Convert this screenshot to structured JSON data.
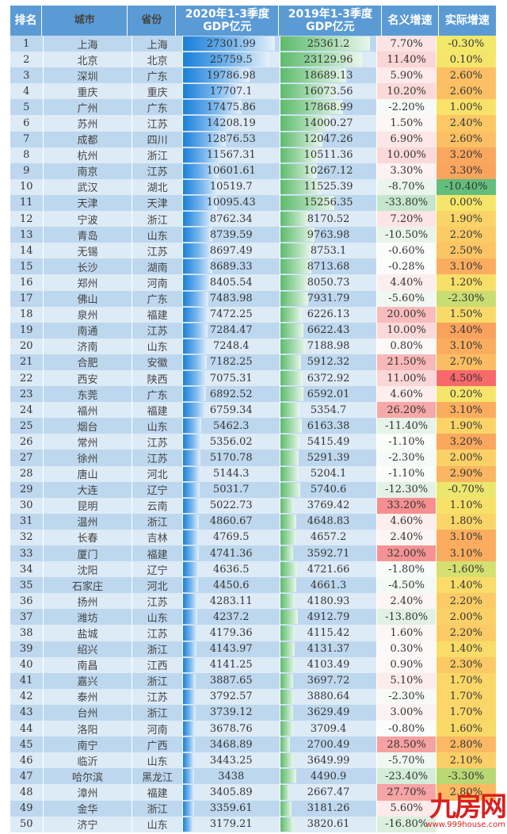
{
  "table": {
    "headers": {
      "rank": "排名",
      "city": "城市",
      "province": "省份",
      "gdp2020": "2020年1-3季度 GDP亿元",
      "gdp2019": "2019年1-3季度 GDP亿元",
      "nominal_growth": "名义增速",
      "real_growth": "实际增速"
    },
    "rows": [
      {
        "rank": "1",
        "city": "上海",
        "province": "上海",
        "gdp2020": "27301.99",
        "gdp2019": "25361.2",
        "nominal": "7.70%",
        "real": "-0.30%",
        "nominal_color": "#fde4e4",
        "real_color": "#f2e86a"
      },
      {
        "rank": "2",
        "city": "北京",
        "province": "北京",
        "gdp2020": "25759.5",
        "gdp2019": "23129.96",
        "nominal": "11.40%",
        "real": "0.10%",
        "nominal_color": "#fbd6d6",
        "real_color": "#f5e66b"
      },
      {
        "rank": "3",
        "city": "深圳",
        "province": "广东",
        "gdp2020": "19786.98",
        "gdp2019": "18689.13",
        "nominal": "5.90%",
        "real": "2.60%",
        "nominal_color": "#fdeaea",
        "real_color": "#fbc063"
      },
      {
        "rank": "4",
        "city": "重庆",
        "province": "重庆",
        "gdp2020": "17707.1",
        "gdp2019": "16073.56",
        "nominal": "10.20%",
        "real": "2.60%",
        "nominal_color": "#fbd9d9",
        "real_color": "#fbc063"
      },
      {
        "rank": "5",
        "city": "广州",
        "province": "广东",
        "gdp2020": "17475.86",
        "gdp2019": "17868.99",
        "nominal": "-2.20%",
        "real": "1.00%",
        "nominal_color": "#f7fbf8",
        "real_color": "#f8e26a"
      },
      {
        "rank": "6",
        "city": "苏州",
        "province": "江苏",
        "gdp2020": "14208.19",
        "gdp2019": "14000.27",
        "nominal": "1.50%",
        "real": "2.40%",
        "nominal_color": "#fdf6f6",
        "real_color": "#fbc865"
      },
      {
        "rank": "7",
        "city": "成都",
        "province": "四川",
        "gdp2020": "12876.53",
        "gdp2019": "12047.26",
        "nominal": "6.90%",
        "real": "2.60%",
        "nominal_color": "#fde6e6",
        "real_color": "#fbc063"
      },
      {
        "rank": "8",
        "city": "杭州",
        "province": "浙江",
        "gdp2020": "11567.31",
        "gdp2019": "10511.36",
        "nominal": "10.00%",
        "real": "3.20%",
        "nominal_color": "#fbd9d9",
        "real_color": "#f9a85e"
      },
      {
        "rank": "9",
        "city": "南京",
        "province": "江苏",
        "gdp2020": "10601.61",
        "gdp2019": "10267.12",
        "nominal": "3.30%",
        "real": "3.30%",
        "nominal_color": "#fdf1f1",
        "real_color": "#f9a55e"
      },
      {
        "rank": "10",
        "city": "武汉",
        "province": "湖北",
        "gdp2020": "10519.7",
        "gdp2019": "11525.39",
        "nominal": "-8.70%",
        "real": "-10.40%",
        "nominal_color": "#eaf5ec",
        "real_color": "#63be7b"
      },
      {
        "rank": "11",
        "city": "天津",
        "province": "天津",
        "gdp2020": "10095.43",
        "gdp2019": "15256.35",
        "nominal": "-33.80%",
        "real": "0.00%",
        "nominal_color": "#c5e6cc",
        "real_color": "#f5e66b"
      },
      {
        "rank": "12",
        "city": "宁波",
        "province": "浙江",
        "gdp2020": "8762.34",
        "gdp2019": "8170.52",
        "nominal": "7.20%",
        "real": "1.90%",
        "nominal_color": "#fde5e5",
        "real_color": "#fbd468"
      },
      {
        "rank": "13",
        "city": "青岛",
        "province": "山东",
        "gdp2020": "8739.59",
        "gdp2019": "9763.98",
        "nominal": "-10.50%",
        "real": "2.20%",
        "nominal_color": "#e8f4ea",
        "real_color": "#fbcc66"
      },
      {
        "rank": "14",
        "city": "无锡",
        "province": "江苏",
        "gdp2020": "8697.49",
        "gdp2019": "8753.1",
        "nominal": "-0.60%",
        "real": "2.50%",
        "nominal_color": "#fbfdfb",
        "real_color": "#fbc564"
      },
      {
        "rank": "15",
        "city": "长沙",
        "province": "湖南",
        "gdp2020": "8689.33",
        "gdp2019": "8713.68",
        "nominal": "-0.28%",
        "real": "3.10%",
        "nominal_color": "#fbfdfb",
        "real_color": "#faad5f"
      },
      {
        "rank": "16",
        "city": "郑州",
        "province": "河南",
        "gdp2020": "8405.54",
        "gdp2019": "8050.73",
        "nominal": "4.40%",
        "real": "1.20%",
        "nominal_color": "#fdeeee",
        "real_color": "#f8df69"
      },
      {
        "rank": "17",
        "city": "佛山",
        "province": "广东",
        "gdp2020": "7483.98",
        "gdp2019": "7931.79",
        "nominal": "-5.60%",
        "real": "-2.30%",
        "nominal_color": "#f1f8f2",
        "real_color": "#c9dd72"
      },
      {
        "rank": "18",
        "city": "泉州",
        "province": "福建",
        "gdp2020": "7472.25",
        "gdp2019": "6226.13",
        "nominal": "20.00%",
        "real": "1.50%",
        "nominal_color": "#f8bcbc",
        "real_color": "#f9da68"
      },
      {
        "rank": "19",
        "city": "南通",
        "province": "江苏",
        "gdp2020": "7284.47",
        "gdp2019": "6622.43",
        "nominal": "10.00%",
        "real": "3.40%",
        "nominal_color": "#fbd9d9",
        "real_color": "#f9a25d"
      },
      {
        "rank": "20",
        "city": "济南",
        "province": "山东",
        "gdp2020": "7248.4",
        "gdp2019": "7188.98",
        "nominal": "0.80%",
        "real": "3.10%",
        "nominal_color": "#fdf8f8",
        "real_color": "#faad5f"
      },
      {
        "rank": "21",
        "city": "合肥",
        "province": "安徽",
        "gdp2020": "7182.25",
        "gdp2019": "5912.32",
        "nominal": "21.50%",
        "real": "2.70%",
        "nominal_color": "#f8b8b8",
        "real_color": "#fbbd62"
      },
      {
        "rank": "22",
        "city": "西安",
        "province": "陕西",
        "gdp2020": "7075.31",
        "gdp2019": "6372.92",
        "nominal": "11.00%",
        "real": "4.50%",
        "nominal_color": "#fbd7d7",
        "real_color": "#f8696b"
      },
      {
        "rank": "23",
        "city": "东莞",
        "province": "广东",
        "gdp2020": "6892.52",
        "gdp2019": "6592.01",
        "nominal": "4.60%",
        "real": "0.20%",
        "nominal_color": "#fdeded",
        "real_color": "#f5e56b"
      },
      {
        "rank": "24",
        "city": "福州",
        "province": "福建",
        "gdp2020": "6759.34",
        "gdp2019": "5354.7",
        "nominal": "26.20%",
        "real": "3.10%",
        "nominal_color": "#f7a9a9",
        "real_color": "#faad5f"
      },
      {
        "rank": "25",
        "city": "烟台",
        "province": "山东",
        "gdp2020": "5462.3",
        "gdp2019": "6163.38",
        "nominal": "-11.40%",
        "real": "1.90%",
        "nominal_color": "#e6f3e8",
        "real_color": "#fbd468"
      },
      {
        "rank": "26",
        "city": "常州",
        "province": "江苏",
        "gdp2020": "5356.02",
        "gdp2019": "5415.49",
        "nominal": "-1.10%",
        "real": "3.20%",
        "nominal_color": "#fafdfa",
        "real_color": "#f9a85e"
      },
      {
        "rank": "27",
        "city": "徐州",
        "province": "江苏",
        "gdp2020": "5170.78",
        "gdp2019": "5291.39",
        "nominal": "-2.30%",
        "real": "2.00%",
        "nominal_color": "#f7fbf8",
        "real_color": "#fbd167"
      },
      {
        "rank": "28",
        "city": "唐山",
        "province": "河北",
        "gdp2020": "5144.3",
        "gdp2019": "5204.1",
        "nominal": "-1.10%",
        "real": "2.90%",
        "nominal_color": "#fafdfa",
        "real_color": "#fab661"
      },
      {
        "rank": "29",
        "city": "大连",
        "province": "辽宁",
        "gdp2020": "5031.7",
        "gdp2019": "5740.6",
        "nominal": "-12.30%",
        "real": "-0.70%",
        "nominal_color": "#e4f2e6",
        "real_color": "#ebe66e"
      },
      {
        "rank": "30",
        "city": "昆明",
        "province": "云南",
        "gdp2020": "5022.73",
        "gdp2019": "3769.42",
        "nominal": "33.20%",
        "real": "1.10%",
        "nominal_color": "#f58f90",
        "real_color": "#f8e169"
      },
      {
        "rank": "31",
        "city": "温州",
        "province": "浙江",
        "gdp2020": "4860.67",
        "gdp2019": "4648.83",
        "nominal": "4.60%",
        "real": "1.80%",
        "nominal_color": "#fdeded",
        "real_color": "#fad668"
      },
      {
        "rank": "32",
        "city": "长春",
        "province": "吉林",
        "gdp2020": "4769.5",
        "gdp2019": "4657.2",
        "nominal": "2.40%",
        "real": "3.10%",
        "nominal_color": "#fdf4f4",
        "real_color": "#faad5f"
      },
      {
        "rank": "33",
        "city": "厦门",
        "province": "福建",
        "gdp2020": "4741.36",
        "gdp2019": "3592.71",
        "nominal": "32.00%",
        "real": "3.10%",
        "nominal_color": "#f59394",
        "real_color": "#faad5f"
      },
      {
        "rank": "34",
        "city": "沈阳",
        "province": "辽宁",
        "gdp2020": "4636.5",
        "gdp2019": "4721.66",
        "nominal": "-1.80%",
        "real": "-1.60%",
        "nominal_color": "#f8fcf9",
        "real_color": "#d6e070"
      },
      {
        "rank": "35",
        "city": "石家庄",
        "province": "河北",
        "gdp2020": "4450.6",
        "gdp2019": "4661.3",
        "nominal": "-4.50%",
        "real": "1.40%",
        "nominal_color": "#f3f9f4",
        "real_color": "#f9dc69"
      },
      {
        "rank": "36",
        "city": "扬州",
        "province": "江苏",
        "gdp2020": "4283.11",
        "gdp2019": "4180.93",
        "nominal": "2.40%",
        "real": "2.20%",
        "nominal_color": "#fdf4f4",
        "real_color": "#fbcc66"
      },
      {
        "rank": "37",
        "city": "潍坊",
        "province": "山东",
        "gdp2020": "4237.2",
        "gdp2019": "4912.79",
        "nominal": "-13.80%",
        "real": "2.00%",
        "nominal_color": "#e1f1e4",
        "real_color": "#fbd167"
      },
      {
        "rank": "38",
        "city": "盐城",
        "province": "江苏",
        "gdp2020": "4179.36",
        "gdp2019": "4115.42",
        "nominal": "1.60%",
        "real": "2.20%",
        "nominal_color": "#fdf6f6",
        "real_color": "#fbcc66"
      },
      {
        "rank": "39",
        "city": "绍兴",
        "province": "浙江",
        "gdp2020": "4143.97",
        "gdp2019": "4131.37",
        "nominal": "0.30%",
        "real": "1.40%",
        "nominal_color": "#fdf9f9",
        "real_color": "#f9dc69"
      },
      {
        "rank": "40",
        "city": "南昌",
        "province": "江西",
        "gdp2020": "4141.25",
        "gdp2019": "4103.49",
        "nominal": "0.90%",
        "real": "2.30%",
        "nominal_color": "#fdf8f8",
        "real_color": "#fbca65"
      },
      {
        "rank": "41",
        "city": "嘉兴",
        "province": "浙江",
        "gdp2020": "3887.65",
        "gdp2019": "3697.72",
        "nominal": "5.10%",
        "real": "1.70%",
        "nominal_color": "#fdecec",
        "real_color": "#fad768"
      },
      {
        "rank": "42",
        "city": "泰州",
        "province": "江苏",
        "gdp2020": "3792.57",
        "gdp2019": "3880.64",
        "nominal": "-2.30%",
        "real": "1.70%",
        "nominal_color": "#f7fbf8",
        "real_color": "#fad768"
      },
      {
        "rank": "43",
        "city": "台州",
        "province": "浙江",
        "gdp2020": "3739.12",
        "gdp2019": "3629.49",
        "nominal": "3.00%",
        "real": "1.70%",
        "nominal_color": "#fdf2f2",
        "real_color": "#fad768"
      },
      {
        "rank": "44",
        "city": "洛阳",
        "province": "河南",
        "gdp2020": "3678.76",
        "gdp2019": "3709.4",
        "nominal": "-0.80%",
        "real": "1.60%",
        "nominal_color": "#fbfdfb",
        "real_color": "#f9d968"
      },
      {
        "rank": "45",
        "city": "南宁",
        "province": "广西",
        "gdp2020": "3468.89",
        "gdp2019": "2700.49",
        "nominal": "28.50%",
        "real": "2.80%",
        "nominal_color": "#f6a1a2",
        "real_color": "#fab962"
      },
      {
        "rank": "46",
        "city": "临沂",
        "province": "山东",
        "gdp2020": "3443.25",
        "gdp2019": "3649.99",
        "nominal": "-5.70%",
        "real": "2.10%",
        "nominal_color": "#f1f8f2",
        "real_color": "#fbcf67"
      },
      {
        "rank": "47",
        "city": "哈尔滨",
        "province": "黑龙江",
        "gdp2020": "3438",
        "gdp2019": "4490.9",
        "nominal": "-23.40%",
        "real": "-3.30%",
        "nominal_color": "#d4ecd8",
        "real_color": "#b9d874"
      },
      {
        "rank": "48",
        "city": "漳州",
        "province": "福建",
        "gdp2020": "3405.89",
        "gdp2019": "2667.47",
        "nominal": "27.70%",
        "real": "2.80%",
        "nominal_color": "#f6a4a5",
        "real_color": "#fab962"
      },
      {
        "rank": "49",
        "city": "金华",
        "province": "浙江",
        "gdp2020": "3359.61",
        "gdp2019": "3181.26",
        "nominal": "5.60%",
        "real": "",
        "nominal_color": "#fdeaea",
        "real_color": "#ffffff"
      },
      {
        "rank": "50",
        "city": "济宁",
        "province": "山东",
        "gdp2020": "3179.21",
        "gdp2019": "3820.61",
        "nominal": "-16.80%",
        "real": "",
        "nominal_color": "#dcefdf",
        "real_color": "#ffffff"
      }
    ],
    "bar_max_2020": 27301.99,
    "bar_max_2019": 25361.2
  },
  "watermark": {
    "logo": "九房网",
    "url": "www.999house.com"
  },
  "colors": {
    "header_bg": "#5b9bd5",
    "row_odd": "#bdd7ee",
    "row_even": "#ddebf7",
    "bar_2020": "#1a7fd8",
    "bar_2019": "#5dbb6c",
    "watermark": "#d9201f"
  }
}
